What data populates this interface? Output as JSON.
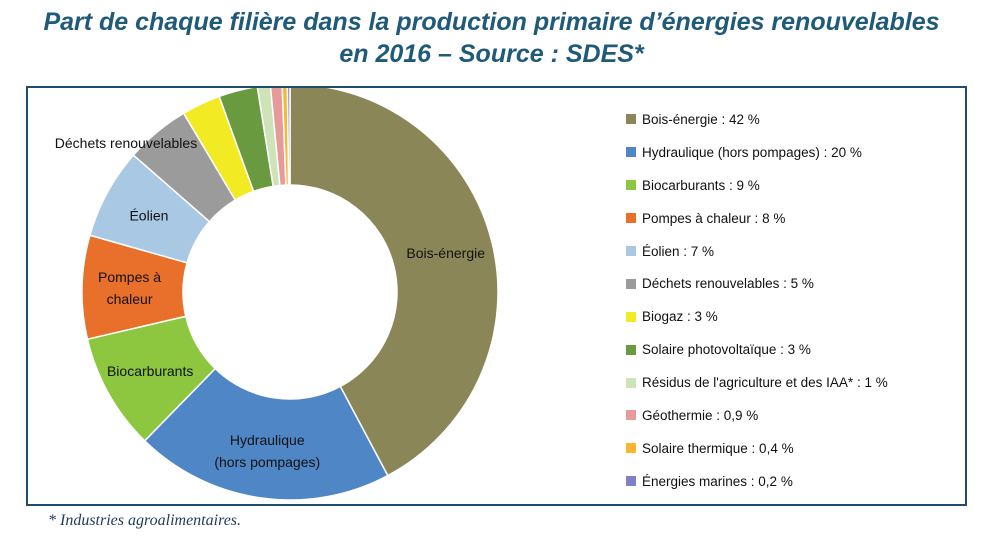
{
  "title_line1": "Part de chaque filière dans la production primaire d’énergies renouvelables",
  "title_line2": "en 2016  – Source : SDES*",
  "footnote": "* Industries agroalimentaires.",
  "chart_data": {
    "type": "pie",
    "donut": true,
    "unit": "%",
    "legend_position": "right",
    "title": "Part de chaque filière dans la production primaire d’énergies renouvelables en 2016  – Source : SDES*",
    "series": [
      {
        "name": "Bois-énergie",
        "legend": "Bois-énergie : 42 %",
        "value": 42,
        "color": "#8b8657",
        "slice_label": [
          "Bois-énergie"
        ]
      },
      {
        "name": "Hydraulique (hors pompages)",
        "legend": "Hydraulique (hors pompages) : 20 %",
        "value": 20,
        "color": "#4f86c6",
        "slice_label": [
          "Hydraulique",
          "(hors pompages)"
        ]
      },
      {
        "name": "Biocarburants",
        "legend": "Biocarburants : 9 %",
        "value": 9,
        "color": "#8dc63f",
        "slice_label": [
          "Biocarburants"
        ]
      },
      {
        "name": "Pompes à chaleur",
        "legend": "Pompes à chaleur : 8 %",
        "value": 8,
        "color": "#e8702a",
        "slice_label": [
          "Pompes à",
          "chaleur"
        ]
      },
      {
        "name": "Éolien",
        "legend": "Éolien : 7 %",
        "value": 7,
        "color": "#a9c8e4",
        "slice_label": [
          "Éolien"
        ]
      },
      {
        "name": "Déchets renouvelables",
        "legend": "Déchets renouvelables : 5 %",
        "value": 5,
        "color": "#9b9b9b",
        "slice_label": [
          "Déchets renouvelables"
        ]
      },
      {
        "name": "Biogaz",
        "legend": "Biogaz : 3 %",
        "value": 3,
        "color": "#f2ea22",
        "slice_label": []
      },
      {
        "name": "Solaire photovoltaïque",
        "legend": "Solaire photovoltaïque : 3 %",
        "value": 3,
        "color": "#6a9a40",
        "slice_label": []
      },
      {
        "name": "Résidus de l'agriculture et des IAA*",
        "legend": "Résidus de l'agriculture et des IAA* : 1 %",
        "value": 1,
        "color": "#cfe3b8",
        "slice_label": []
      },
      {
        "name": "Géothermie",
        "legend": "Géothermie : 0,9 %",
        "value": 0.9,
        "color": "#e79a9a",
        "slice_label": []
      },
      {
        "name": "Solaire thermique",
        "legend": "Solaire thermique : 0,4 %",
        "value": 0.4,
        "color": "#f7b733",
        "slice_label": []
      },
      {
        "name": "Énergies marines",
        "legend": "Énergies marines : 0,2 %",
        "value": 0.2,
        "color": "#8080c8",
        "slice_label": []
      }
    ]
  }
}
